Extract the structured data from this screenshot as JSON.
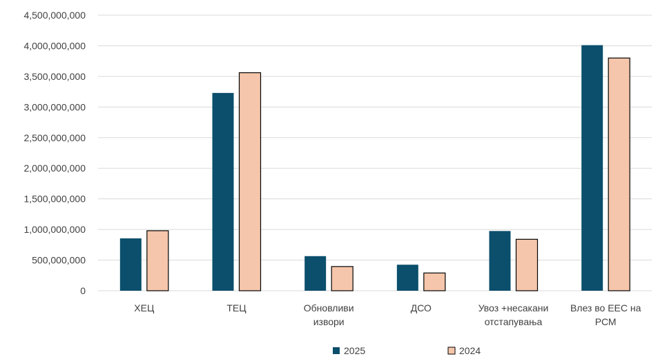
{
  "chart_data": {
    "type": "bar",
    "title": "",
    "xlabel": "",
    "ylabel": "",
    "ylim": [
      0,
      4500000000
    ],
    "ytick_step": 500000000,
    "grid": true,
    "legend_position": "bottom",
    "categories": [
      [
        "ХЕЦ"
      ],
      [
        "ТЕЦ"
      ],
      [
        "Обновливи",
        "извори"
      ],
      [
        "ДСО"
      ],
      [
        "Увоз +несакани",
        "отстапувања"
      ],
      [
        "Влез во ЕЕС на",
        "РСМ"
      ]
    ],
    "series": [
      {
        "name": "2025",
        "color": "#0b4f6c",
        "outline": "none",
        "values": [
          855000000,
          3230000000,
          565000000,
          425000000,
          975000000,
          4010000000
        ]
      },
      {
        "name": "2024",
        "color": "#f5c6ab",
        "outline": "#000000",
        "values": [
          980000000,
          3560000000,
          395000000,
          290000000,
          840000000,
          3800000000
        ]
      }
    ]
  }
}
